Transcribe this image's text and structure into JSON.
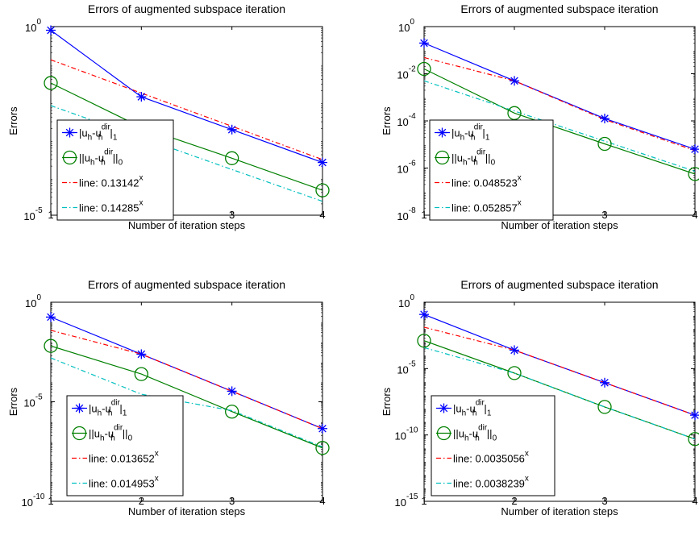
{
  "chart_data": [
    {
      "type": "line",
      "title": "Errors of augmented subspace iteration",
      "xlabel": "Number of iteration steps",
      "ylabel": "Errors",
      "xlim": [
        1,
        4
      ],
      "ylim_exp": [
        -5,
        0
      ],
      "xticks": [
        "1",
        "2",
        "3",
        "4"
      ],
      "yticks_exp": [
        -5,
        0
      ],
      "y_scale": "log",
      "grid": false,
      "legend_position": "bottom-left",
      "x": [
        1,
        2,
        3,
        4
      ],
      "series": [
        {
          "name_base": "|u",
          "name_sub1": "h",
          "name_mid": "-u",
          "name_sub2": "h",
          "name_sup": "dir",
          "name_end": "|",
          "name_endsub": "1",
          "color": "#0000ff",
          "marker": "star",
          "dash": "solid",
          "values": [
            0.8,
            0.0138,
            0.00186,
            0.00025
          ]
        },
        {
          "name_base": "||u",
          "name_sub1": "h",
          "name_mid": "-u",
          "name_sub2": "h",
          "name_sup": "dir",
          "name_end": "||",
          "name_endsub": "0",
          "color": "#008000",
          "marker": "circle",
          "dash": "solid",
          "values": [
            0.032,
            0.00214,
            0.000324,
            4.57e-05
          ]
        },
        {
          "name_base": "line: 0.13142",
          "name_sup": "x",
          "color": "#ff0000",
          "marker": "none",
          "dash": "dashdot",
          "values": [
            0.13142,
            0.01727,
            0.00227,
            0.000298
          ]
        },
        {
          "name_base": "line: 0.14285",
          "name_sup": "x",
          "color": "#00bfbf",
          "marker": "none",
          "dash": "dashdot",
          "values": [
            0.008,
            0.00114,
            0.000163,
            2.33e-05
          ]
        }
      ]
    },
    {
      "type": "line",
      "title": "Errors of augmented subspace iteration",
      "xlabel": "Number of iteration steps",
      "ylabel": "Errors",
      "xlim": [
        1,
        4
      ],
      "ylim_exp": [
        -8,
        0
      ],
      "xticks": [
        "1",
        "2",
        "3",
        "4"
      ],
      "yticks_exp": [
        -8,
        -6,
        -4,
        -2,
        0
      ],
      "y_scale": "log",
      "grid": false,
      "legend_position": "bottom-left",
      "x": [
        1,
        2,
        3,
        4
      ],
      "series": [
        {
          "name_base": "|u",
          "name_sub1": "h",
          "name_mid": "-u",
          "name_sub2": "h",
          "name_sup": "dir",
          "name_end": "|",
          "name_endsub": "1",
          "color": "#0000ff",
          "marker": "star",
          "dash": "solid",
          "values": [
            0.2,
            0.005,
            0.000126,
            6.3e-06
          ]
        },
        {
          "name_base": "||u",
          "name_sub1": "h",
          "name_mid": "-u",
          "name_sub2": "h",
          "name_sup": "dir",
          "name_end": "||",
          "name_endsub": "0",
          "color": "#008000",
          "marker": "circle",
          "dash": "solid",
          "values": [
            0.016,
            0.000214,
            1.06e-05,
            5.6e-07
          ]
        },
        {
          "name_base": "line: 0.048523",
          "name_sup": "x",
          "color": "#ff0000",
          "marker": "none",
          "dash": "dashdot",
          "values": [
            0.048523,
            0.005,
            0.000114,
            5.5e-06
          ]
        },
        {
          "name_base": "line: 0.052857",
          "name_sup": "x",
          "color": "#00bfbf",
          "marker": "none",
          "dash": "dashdot",
          "values": [
            0.005,
            0.000264,
            1.39e-05,
            7.3e-07
          ]
        }
      ]
    },
    {
      "type": "line",
      "title": "Errors of augmented subspace iteration",
      "xlabel": "Number of iteration steps",
      "ylabel": "Errors",
      "xlim": [
        1,
        4
      ],
      "ylim_exp": [
        -10,
        0
      ],
      "xticks": [
        "1",
        "2",
        "3",
        "4"
      ],
      "yticks_exp": [
        -10,
        -5,
        0
      ],
      "y_scale": "log",
      "grid": false,
      "legend_position": "bottom-left",
      "x": [
        1,
        2,
        3,
        4
      ],
      "series": [
        {
          "name_base": "|u",
          "name_sub1": "h",
          "name_mid": "-u",
          "name_sub2": "h",
          "name_sup": "dir",
          "name_end": "|",
          "name_endsub": "1",
          "color": "#0000ff",
          "marker": "star",
          "dash": "solid",
          "values": [
            0.18,
            0.00246,
            3.39e-05,
            4.5e-07
          ]
        },
        {
          "name_base": "||u",
          "name_sub1": "h",
          "name_mid": "-u",
          "name_sub2": "h",
          "name_sup": "dir",
          "name_end": "||",
          "name_endsub": "0",
          "color": "#008000",
          "marker": "circle",
          "dash": "solid",
          "values": [
            0.0064,
            0.000246,
            3.2e-06,
            4.79e-08
          ]
        },
        {
          "name_base": "line: 0.013652",
          "name_sup": "x",
          "color": "#ff0000",
          "marker": "none",
          "dash": "dashdot",
          "values": [
            0.039,
            0.00246,
            3.39e-05,
            4.5e-07
          ]
        },
        {
          "name_base": "line: 0.014953",
          "name_sup": "x",
          "color": "#00bfbf",
          "marker": "none",
          "dash": "dashdot",
          "values": [
            0.0016,
            2.4e-05,
            3.63e-06,
            5.43e-08
          ]
        }
      ]
    },
    {
      "type": "line",
      "title": "Errors of augmented subspace iteration",
      "xlabel": "Number of iteration steps",
      "ylabel": "Errors",
      "xlim": [
        1,
        4
      ],
      "ylim_exp": [
        -15,
        0
      ],
      "xticks": [
        "1",
        "2",
        "3",
        "4"
      ],
      "yticks_exp": [
        -15,
        -10,
        -5,
        0
      ],
      "y_scale": "log",
      "grid": false,
      "legend_position": "bottom-left",
      "x": [
        1,
        2,
        3,
        4
      ],
      "series": [
        {
          "name_base": "|u",
          "name_sub1": "h",
          "name_mid": "-u",
          "name_sub2": "h",
          "name_sup": "dir",
          "name_end": "|",
          "name_endsub": "1",
          "color": "#0000ff",
          "marker": "star",
          "dash": "solid",
          "values": [
            0.12,
            0.000246,
            8.7e-07,
            3.1e-09
          ]
        },
        {
          "name_base": "||u",
          "name_sub1": "h",
          "name_mid": "-u",
          "name_sub2": "h",
          "name_sup": "dir",
          "name_end": "||",
          "name_endsub": "0",
          "color": "#008000",
          "marker": "circle",
          "dash": "solid",
          "values": [
            0.00126,
            4.6e-06,
            1.29e-08,
            4.93e-11
          ]
        },
        {
          "name_base": "line: 0.0035056",
          "name_sup": "x",
          "color": "#ff0000",
          "marker": "none",
          "dash": "dashdot",
          "values": [
            0.0131,
            0.000246,
            8.7e-07,
            3.1e-09
          ]
        },
        {
          "name_base": "line: 0.0038239",
          "name_sup": "x",
          "color": "#00bfbf",
          "marker": "none",
          "dash": "dashdot",
          "values": [
            0.00038,
            4.6e-06,
            1.29e-08,
            4.93e-11
          ]
        }
      ]
    }
  ]
}
